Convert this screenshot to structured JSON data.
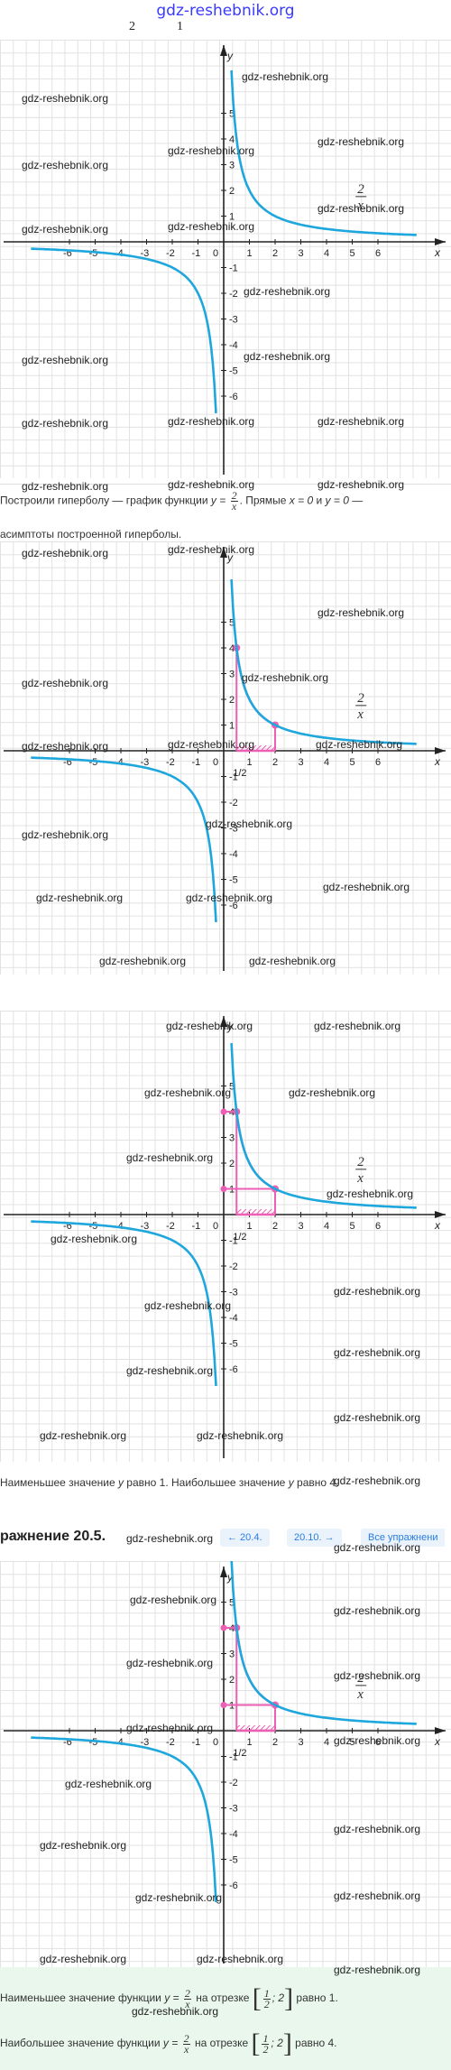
{
  "page": {
    "site_title": "gdz-reshebnik.org",
    "top_fragments": [
      "2",
      "1"
    ],
    "watermark": "gdz-reshebnik.org"
  },
  "colors": {
    "curve": "#1ea7dc",
    "pink": "#ec5fb5",
    "grid": "#e2e2e2",
    "answer_bg": "#e9f7ec"
  },
  "chart_data": [
    {
      "type": "line",
      "title": "",
      "function_label": "2/x",
      "xlabel": "x",
      "ylabel": "y",
      "xlim": [
        -7,
        7.5
      ],
      "ylim": [
        -7,
        6.5
      ],
      "x_ticks": [
        -6,
        -5,
        -4,
        -3,
        -2,
        -1,
        1,
        2,
        3,
        4,
        5,
        6
      ],
      "y_ticks": [
        -6,
        -5,
        -4,
        -3,
        -2,
        -1,
        1,
        2,
        3,
        4,
        5
      ],
      "origin_label": "0",
      "series": [
        {
          "points": [
            [
              0.3,
              6.67
            ],
            [
              0.5,
              4
            ],
            [
              1,
              2
            ],
            [
              2,
              1
            ],
            [
              3,
              0.67
            ],
            [
              4,
              0.5
            ],
            [
              6,
              0.33
            ],
            [
              7.5,
              0.27
            ],
            [
              -0.3,
              -6.67
            ],
            [
              -0.5,
              -4
            ],
            [
              -1,
              -2
            ],
            [
              -2,
              -1
            ],
            [
              -3,
              -0.67
            ],
            [
              -4,
              -0.5
            ],
            [
              -6,
              -0.33
            ],
            [
              -7.5,
              -0.27
            ]
          ]
        }
      ],
      "highlight": null
    },
    {
      "type": "line",
      "title": "",
      "function_label": "2/x",
      "xlabel": "x",
      "ylabel": "y",
      "xlim": [
        -7,
        7.5
      ],
      "ylim": [
        -7,
        6.5
      ],
      "x_ticks": [
        -6,
        -5,
        -4,
        -3,
        -2,
        -1,
        1,
        2,
        3,
        4,
        5,
        6
      ],
      "y_ticks": [
        -6,
        -5,
        -4,
        -3,
        -2,
        -1,
        1,
        2,
        3,
        4,
        5
      ],
      "origin_label": "0",
      "half_label": "1/2",
      "series": [
        {
          "points": [
            [
              0.3,
              6.67
            ],
            [
              0.5,
              4
            ],
            [
              1,
              2
            ],
            [
              2,
              1
            ],
            [
              3,
              0.67
            ],
            [
              4,
              0.5
            ],
            [
              6,
              0.33
            ],
            [
              7.5,
              0.27
            ],
            [
              -0.3,
              -6.67
            ],
            [
              -0.5,
              -4
            ],
            [
              -1,
              -2
            ],
            [
              -2,
              -1
            ],
            [
              -3,
              -0.67
            ],
            [
              -4,
              -0.5
            ],
            [
              -6,
              -0.33
            ],
            [
              -7.5,
              -0.27
            ]
          ]
        }
      ],
      "highlight": {
        "x_from": 0.5,
        "x_to": 2,
        "y_min": 1,
        "y_max": 4,
        "points": [
          [
            0.5,
            4
          ],
          [
            2,
            1
          ]
        ]
      }
    },
    {
      "type": "line",
      "title": "",
      "function_label": "2/x",
      "xlabel": "x",
      "ylabel": "y",
      "xlim": [
        -7,
        7.5
      ],
      "ylim": [
        -7,
        6.5
      ],
      "x_ticks": [
        -6,
        -5,
        -4,
        -3,
        -2,
        -1,
        1,
        2,
        3,
        4,
        5,
        6
      ],
      "y_ticks": [
        -6,
        -5,
        -4,
        -3,
        -2,
        -1,
        1,
        2,
        3,
        4,
        5
      ],
      "origin_label": "0",
      "half_label": "1/2",
      "series": [
        {
          "points": [
            [
              0.3,
              6.67
            ],
            [
              0.5,
              4
            ],
            [
              1,
              2
            ],
            [
              2,
              1
            ],
            [
              3,
              0.67
            ],
            [
              4,
              0.5
            ],
            [
              6,
              0.33
            ],
            [
              7.5,
              0.27
            ],
            [
              -0.3,
              -6.67
            ],
            [
              -0.5,
              -4
            ],
            [
              -1,
              -2
            ],
            [
              -2,
              -1
            ],
            [
              -3,
              -0.67
            ],
            [
              -4,
              -0.5
            ],
            [
              -6,
              -0.33
            ],
            [
              -7.5,
              -0.27
            ]
          ]
        }
      ],
      "highlight": {
        "x_from": 0.5,
        "x_to": 2,
        "y_min": 1,
        "y_max": 4,
        "points": [
          [
            0.5,
            4
          ],
          [
            2,
            1
          ]
        ],
        "guides": true
      }
    },
    {
      "type": "line",
      "title": "",
      "function_label": "2/x",
      "xlabel": "x",
      "ylabel": "y",
      "xlim": [
        -7,
        7.5
      ],
      "ylim": [
        -7,
        6.5
      ],
      "x_ticks": [
        -6,
        -5,
        -4,
        -3,
        -2,
        -1,
        1,
        2,
        3,
        4,
        5,
        6
      ],
      "y_ticks": [
        -6,
        -5,
        -4,
        -3,
        -2,
        -1,
        1,
        2,
        3,
        4,
        5
      ],
      "origin_label": "0",
      "half_label": "1/2",
      "series": [
        {
          "points": [
            [
              0.3,
              6.67
            ],
            [
              0.5,
              4
            ],
            [
              1,
              2
            ],
            [
              2,
              1
            ],
            [
              3,
              0.67
            ],
            [
              4,
              0.5
            ],
            [
              6,
              0.33
            ],
            [
              7.5,
              0.27
            ],
            [
              -0.3,
              -6.67
            ],
            [
              -0.5,
              -4
            ],
            [
              -1,
              -2
            ],
            [
              -2,
              -1
            ],
            [
              -3,
              -0.67
            ],
            [
              -4,
              -0.5
            ],
            [
              -6,
              -0.33
            ],
            [
              -7.5,
              -0.27
            ]
          ]
        }
      ],
      "highlight": {
        "x_from": 0.5,
        "x_to": 2,
        "y_min": 1,
        "y_max": 4,
        "points": [
          [
            0.5,
            4
          ],
          [
            2,
            1
          ]
        ],
        "guides": true
      }
    }
  ],
  "text": {
    "p1_a": "Построили гиперболу — график функции ",
    "p1_y": "y =",
    "p1_frac_num": "2",
    "p1_frac_den": "x",
    "p1_b": ". Прямые ",
    "p1_c": "x = 0",
    "p1_d": " и ",
    "p1_e": "y = 0",
    "p1_f": " —",
    "p2": "асимптоты построенной гиперболы.",
    "p3_a": "Наименьшее значение ",
    "p3_y1": "y",
    "p3_b": " равно 1. Наибольшее значение ",
    "p3_y2": "y",
    "p3_c": " равно 4.",
    "answer_min_a": "Наименьшее значение функции ",
    "answer_max_a": "Наибольшее значение функции ",
    "answer_y": "y =",
    "answer_num": "2",
    "answer_den": "x",
    "answer_on": " на отрезке ",
    "answer_b_num": "1",
    "answer_b_den": "2",
    "answer_b_rest": "; 2",
    "answer_min_val": " равно 1.",
    "answer_max_val": " равно 4."
  },
  "nav": {
    "exercise": "ражнение 20.5.",
    "prev": "← 20.4.",
    "next": "20.10. →",
    "all": "Все упражнени"
  }
}
